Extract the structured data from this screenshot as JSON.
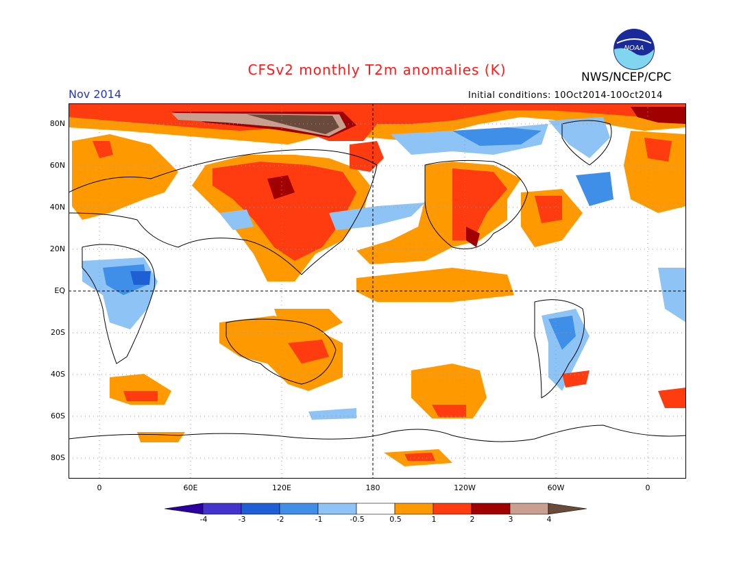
{
  "header": {
    "title": "CFSv2 monthly T2m anomalies (K)",
    "org": "NWS/NCEP/CPC",
    "month": "Nov 2014",
    "initial_conditions": "Initial conditions: 10Oct2014-10Oct2014",
    "logo_text": "NOAA"
  },
  "axes": {
    "y_labels": [
      "80N",
      "60N",
      "40N",
      "20N",
      "EQ",
      "20S",
      "40S",
      "60S",
      "80S"
    ],
    "x_labels": [
      "0",
      "60E",
      "120E",
      "180",
      "120W",
      "60W",
      "0"
    ]
  },
  "legend": {
    "labels": [
      "-4",
      "-3",
      "-2",
      "-1",
      "-0.5",
      "0.5",
      "1",
      "2",
      "3",
      "4"
    ],
    "colors": [
      "#2a00a0",
      "#4433cc",
      "#1f5fd6",
      "#3f8fe8",
      "#8ec4f5",
      "#ffffff",
      "#ff9900",
      "#ff3b10",
      "#a00000",
      "#c9a090",
      "#6a4a3a"
    ]
  },
  "colors": {
    "title": "#ff1a1a",
    "month": "#2233cc",
    "land_outline": "#000000",
    "grid": "#9a9a9a"
  }
}
